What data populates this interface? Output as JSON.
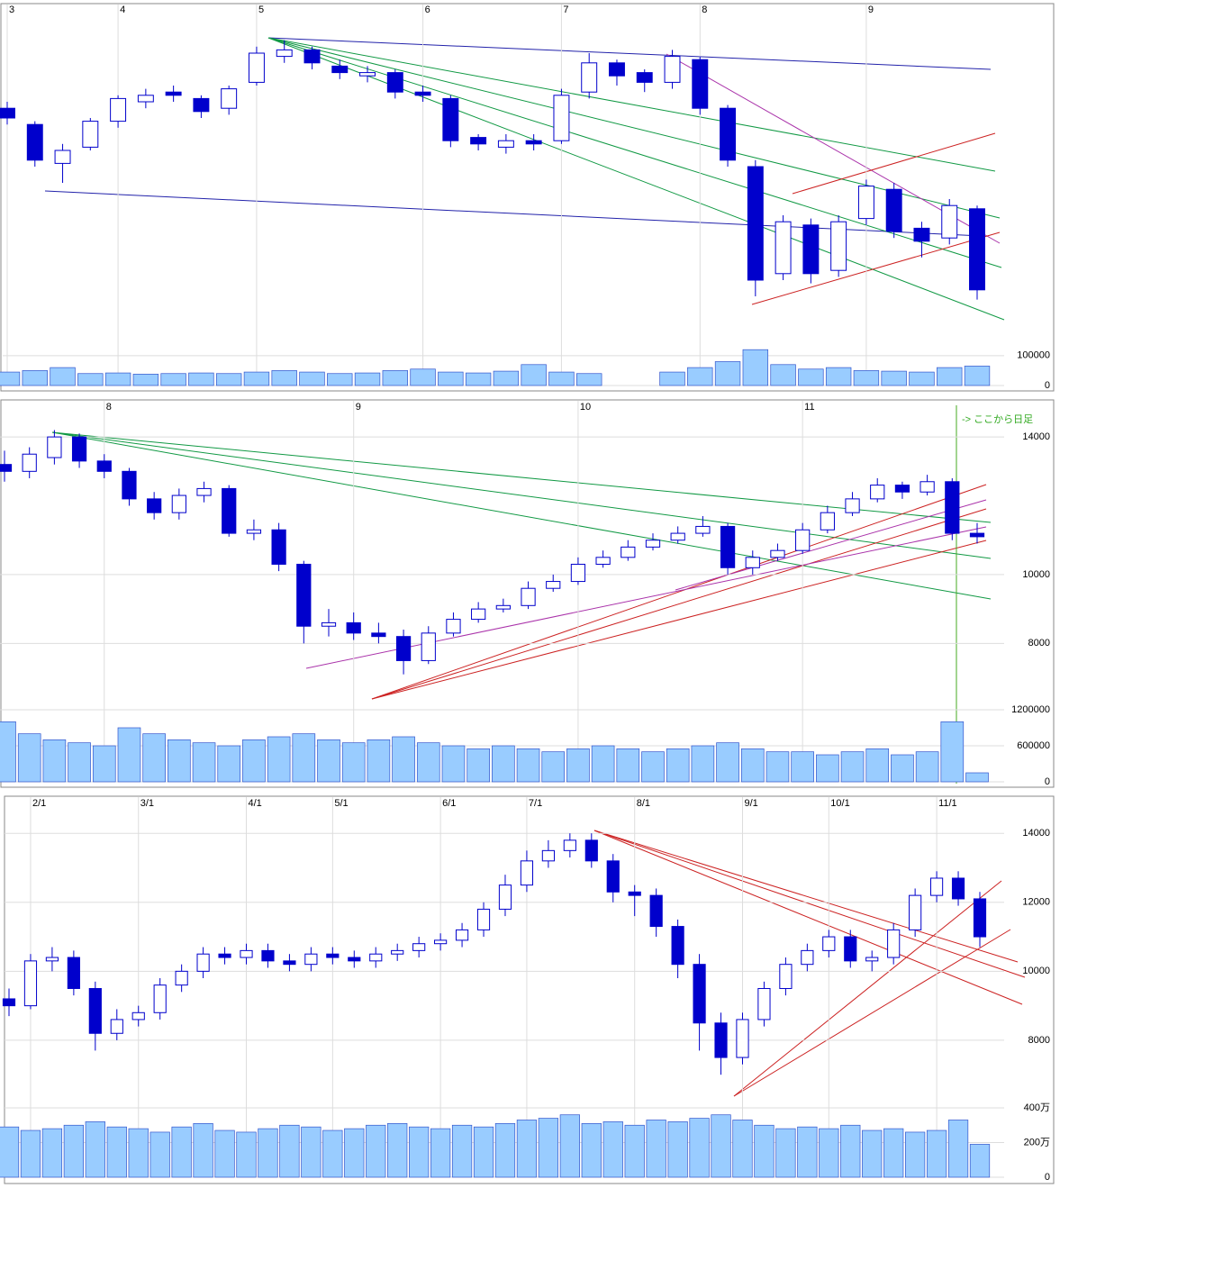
{
  "chart_data": [
    {
      "type": "candlestick",
      "categories": [
        "3",
        null,
        null,
        null,
        "4",
        null,
        null,
        null,
        null,
        "5",
        null,
        null,
        null,
        null,
        null,
        "6",
        null,
        null,
        null,
        null,
        "7",
        null,
        null,
        null,
        null,
        "8",
        null,
        null,
        null,
        null,
        null,
        "9",
        null,
        null,
        null,
        null
      ],
      "open": [
        68,
        63,
        51,
        56,
        64,
        70,
        73,
        71,
        68,
        76,
        84,
        86,
        81,
        78,
        79,
        73,
        71,
        59,
        56,
        58,
        58,
        73,
        82,
        79,
        76,
        83,
        68,
        50,
        17,
        32,
        18,
        34,
        43,
        31,
        28,
        37
      ],
      "high": [
        70,
        64,
        57,
        65,
        72,
        74,
        75,
        72,
        75,
        87,
        89,
        87,
        83,
        81,
        80,
        75,
        72,
        60,
        60,
        60,
        74,
        85,
        83,
        80,
        86,
        84,
        69,
        52,
        35,
        34,
        35,
        46,
        45,
        33,
        40,
        38
      ],
      "low": [
        63,
        50,
        45,
        55,
        62,
        68,
        70,
        65,
        66,
        75,
        82,
        80,
        77,
        76,
        71,
        70,
        56,
        55,
        54,
        55,
        57,
        71,
        75,
        73,
        74,
        66,
        50,
        10,
        15,
        14,
        16,
        32,
        28,
        22,
        26,
        9
      ],
      "close": [
        65,
        52,
        55,
        64,
        71,
        72,
        72,
        67,
        74,
        85,
        86,
        82,
        79,
        79,
        73,
        72,
        58,
        57,
        58,
        57,
        72,
        82,
        78,
        76,
        84,
        68,
        52,
        15,
        33,
        17,
        33,
        44,
        30,
        27,
        38,
        12
      ],
      "volume": [
        45000,
        50000,
        60000,
        40000,
        42000,
        38000,
        40000,
        42000,
        40000,
        45000,
        50000,
        45000,
        40000,
        42000,
        50000,
        55000,
        45000,
        42000,
        48000,
        70000,
        45000,
        40000,
        null,
        null,
        45000,
        60000,
        80000,
        120000,
        70000,
        55000,
        60000,
        50000,
        48000,
        45000,
        60000,
        65000
      ],
      "ylim": [
        0,
        100
      ],
      "vlim": [
        0,
        190000
      ],
      "vticks": [
        100000,
        0
      ],
      "color": "#0000cc",
      "volume_color": "#99ccff"
    },
    {
      "type": "candlestick",
      "categories": [
        null,
        null,
        null,
        null,
        "8",
        null,
        null,
        null,
        null,
        null,
        null,
        null,
        null,
        null,
        "9",
        null,
        null,
        null,
        null,
        null,
        null,
        null,
        null,
        "10",
        null,
        null,
        null,
        null,
        null,
        null,
        null,
        null,
        "11",
        null,
        null,
        null,
        null,
        null,
        null,
        null
      ],
      "open": [
        13200,
        13000,
        13400,
        14000,
        13300,
        13000,
        12200,
        11800,
        12300,
        12500,
        11200,
        11300,
        10300,
        8500,
        8600,
        8300,
        8200,
        7500,
        8300,
        8700,
        9000,
        9100,
        9600,
        9800,
        10300,
        10500,
        10800,
        11000,
        11200,
        11400,
        10200,
        10500,
        10700,
        11300,
        11800,
        12200,
        12600,
        12400,
        12700,
        11200
      ],
      "high": [
        13600,
        13700,
        14200,
        14100,
        13500,
        13100,
        12400,
        12500,
        12700,
        12600,
        11600,
        11500,
        10400,
        9000,
        8900,
        8600,
        8400,
        8500,
        8900,
        9200,
        9300,
        9800,
        10000,
        10500,
        10700,
        11000,
        11200,
        11400,
        11700,
        11500,
        10700,
        10900,
        11500,
        12000,
        12400,
        12800,
        12700,
        12900,
        12800,
        11500
      ],
      "low": [
        12700,
        12800,
        13200,
        13100,
        12800,
        12000,
        11600,
        11600,
        12100,
        11100,
        11000,
        10100,
        8000,
        8200,
        8100,
        8000,
        7100,
        7400,
        8200,
        8600,
        8900,
        9000,
        9500,
        9700,
        10200,
        10400,
        10700,
        10900,
        11100,
        10000,
        10000,
        10400,
        10600,
        11200,
        11700,
        12100,
        12200,
        12300,
        11000,
        10900
      ],
      "close": [
        13000,
        13500,
        14000,
        13300,
        13000,
        12200,
        11800,
        12300,
        12500,
        11200,
        11300,
        10300,
        8500,
        8600,
        8300,
        8200,
        7500,
        8300,
        8700,
        9000,
        9100,
        9600,
        9800,
        10300,
        10500,
        10800,
        11000,
        11200,
        11400,
        10200,
        10500,
        10700,
        11300,
        11800,
        12200,
        12600,
        12400,
        12700,
        11200,
        11100
      ],
      "volume": [
        1000000,
        800000,
        700000,
        650000,
        600000,
        900000,
        800000,
        700000,
        650000,
        600000,
        700000,
        750000,
        800000,
        700000,
        650000,
        700000,
        750000,
        650000,
        600000,
        550000,
        600000,
        550000,
        500000,
        550000,
        600000,
        550000,
        500000,
        550000,
        600000,
        650000,
        550000,
        500000,
        500000,
        450000,
        500000,
        550000,
        450000,
        500000,
        1000000,
        150000
      ],
      "ylim": [
        6150,
        15050
      ],
      "yticks": [
        14000,
        10000,
        8000
      ],
      "vlim": [
        0,
        1245000
      ],
      "vticks": [
        1200000,
        600000,
        0
      ],
      "annotation": "-> ここから日足",
      "color": "#0000cc",
      "volume_color": "#99ccff"
    },
    {
      "type": "candlestick",
      "categories": [
        null,
        "2/1",
        null,
        null,
        null,
        null,
        "3/1",
        null,
        null,
        null,
        null,
        "4/1",
        null,
        null,
        null,
        "5/1",
        null,
        null,
        null,
        null,
        "6/1",
        null,
        null,
        null,
        "7/1",
        null,
        null,
        null,
        null,
        "8/1",
        null,
        null,
        null,
        null,
        "9/1",
        null,
        null,
        null,
        "10/1",
        null,
        null,
        null,
        null,
        "11/1",
        null,
        null
      ],
      "open": [
        9200,
        9000,
        10300,
        10400,
        9500,
        8200,
        8600,
        8800,
        9600,
        10000,
        10500,
        10400,
        10600,
        10300,
        10200,
        10500,
        10400,
        10300,
        10500,
        10600,
        10800,
        10900,
        11200,
        11800,
        12500,
        13200,
        13500,
        13800,
        13200,
        12300,
        12200,
        11300,
        10200,
        8500,
        7500,
        8600,
        9500,
        10200,
        10600,
        11000,
        10300,
        10400,
        11200,
        12200,
        12700,
        12100
      ],
      "high": [
        9500,
        10500,
        10700,
        10600,
        9700,
        8900,
        9000,
        9800,
        10200,
        10700,
        10700,
        10800,
        10800,
        10500,
        10700,
        10700,
        10600,
        10700,
        10800,
        11000,
        11100,
        11400,
        12000,
        12800,
        13500,
        13800,
        14000,
        14000,
        13400,
        12500,
        12400,
        11500,
        10500,
        8800,
        8800,
        9700,
        10400,
        10800,
        11200,
        11200,
        10600,
        11400,
        12400,
        12900,
        12900,
        12300
      ],
      "low": [
        8700,
        8900,
        10000,
        9300,
        7700,
        8000,
        8400,
        8600,
        9400,
        9800,
        10200,
        10200,
        10100,
        10000,
        10000,
        10200,
        10100,
        10100,
        10300,
        10400,
        10600,
        10700,
        11000,
        11600,
        12300,
        13000,
        13300,
        13000,
        12000,
        11600,
        11000,
        9800,
        7700,
        7000,
        7300,
        8400,
        9300,
        10000,
        10400,
        10100,
        10000,
        10200,
        11000,
        12000,
        11900,
        10700
      ],
      "close": [
        9000,
        10300,
        10400,
        9500,
        8200,
        8600,
        8800,
        9600,
        10000,
        10500,
        10400,
        10600,
        10300,
        10200,
        10500,
        10400,
        10300,
        10500,
        10600,
        10800,
        10900,
        11200,
        11800,
        12500,
        13200,
        13500,
        13800,
        13200,
        12300,
        12200,
        11300,
        10200,
        8500,
        7500,
        8600,
        9500,
        10200,
        10600,
        11000,
        10300,
        10400,
        11200,
        12200,
        12700,
        12100,
        11000
      ],
      "volume": [
        2900000,
        2700000,
        2800000,
        3000000,
        3200000,
        2900000,
        2800000,
        2600000,
        2900000,
        3100000,
        2700000,
        2600000,
        2800000,
        3000000,
        2900000,
        2700000,
        2800000,
        3000000,
        3100000,
        2900000,
        2800000,
        3000000,
        2900000,
        3100000,
        3300000,
        3400000,
        3600000,
        3100000,
        3200000,
        3000000,
        3300000,
        3200000,
        3400000,
        3600000,
        3300000,
        3000000,
        2800000,
        2900000,
        2800000,
        3000000,
        2700000,
        2800000,
        2600000,
        2700000,
        3300000,
        1900000
      ],
      "ylim": [
        6300,
        15050
      ],
      "yticks": [
        14000,
        12000,
        10000,
        8000
      ],
      "vlim": [
        0,
        4520000
      ],
      "vticks": [
        {
          "value": 4000000,
          "label": "400万"
        },
        {
          "value": 2000000,
          "label": "200万"
        },
        0
      ],
      "color": "#0000cc",
      "volume_color": "#99ccff"
    }
  ]
}
